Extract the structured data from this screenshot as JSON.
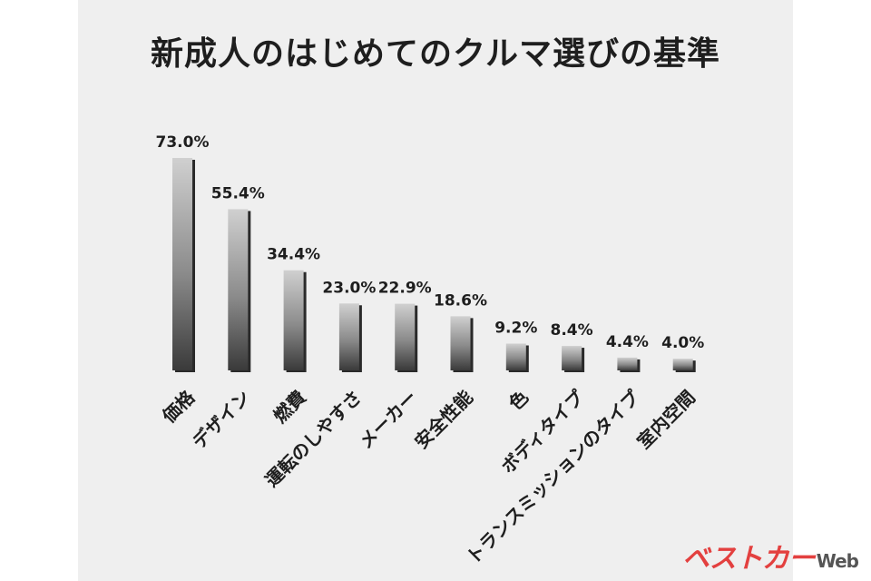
{
  "chart_data": {
    "type": "bar",
    "title": "新成人のはじめてのクルマ選びの基準",
    "categories": [
      "価格",
      "デザイン",
      "燃費",
      "運転のしやすさ",
      "メーカー",
      "安全性能",
      "色",
      "ボディタイプ",
      "トランスミッションのタイプ",
      "室内空間"
    ],
    "values": [
      73.0,
      55.4,
      34.4,
      23.0,
      22.9,
      18.6,
      9.2,
      8.4,
      4.4,
      4.0
    ],
    "value_labels": [
      "73.0%",
      "55.4%",
      "34.4%",
      "23.0%",
      "22.9%",
      "18.6%",
      "9.2%",
      "8.4%",
      "4.4%",
      "4.0%"
    ],
    "xlabel": "",
    "ylabel": "",
    "ylim": [
      0,
      73.0
    ],
    "grid": false
  },
  "logo": {
    "brand": "ベストカー",
    "suffix": "Web",
    "color": "#e3403f"
  }
}
